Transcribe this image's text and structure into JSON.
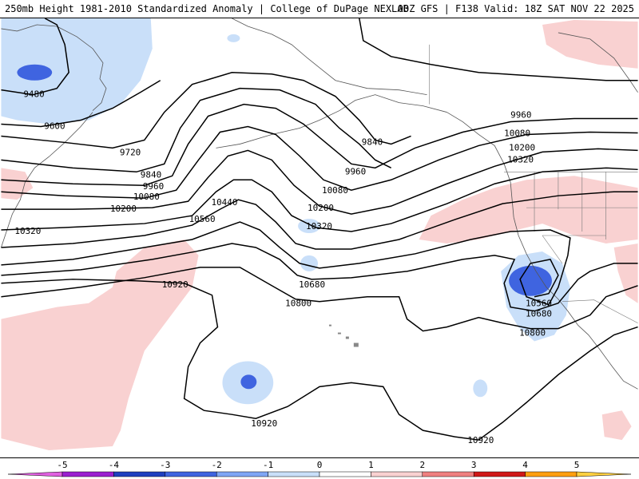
{
  "header": {
    "left_title": "250mb Height 1981-2010 Standardized Anomaly | College of DuPage NEXLAB",
    "right_title": "00Z GFS | F138 Valid: 18Z SAT NOV 22 2025"
  },
  "map": {
    "contour_labels": [
      {
        "id": "c9480",
        "text": "9480"
      },
      {
        "id": "c9600",
        "text": "9600"
      },
      {
        "id": "c9720",
        "text": "9720"
      },
      {
        "id": "c9840a",
        "text": "9840"
      },
      {
        "id": "c9840b",
        "text": "9840"
      },
      {
        "id": "c9960a",
        "text": "9960"
      },
      {
        "id": "c9960b",
        "text": "9960"
      },
      {
        "id": "c9960c",
        "text": "9960"
      },
      {
        "id": "c10080a",
        "text": "10080"
      },
      {
        "id": "c10080b",
        "text": "10080"
      },
      {
        "id": "c10080c",
        "text": "10080"
      },
      {
        "id": "c10200a",
        "text": "10200"
      },
      {
        "id": "c10200b",
        "text": "10200"
      },
      {
        "id": "c10200c",
        "text": "10200"
      },
      {
        "id": "c10320a",
        "text": "10320"
      },
      {
        "id": "c10320b",
        "text": "10320"
      },
      {
        "id": "c10320c",
        "text": "10320"
      },
      {
        "id": "c10440",
        "text": "10440"
      },
      {
        "id": "c10560a",
        "text": "10560"
      },
      {
        "id": "c10560b",
        "text": "10560"
      },
      {
        "id": "c10680a",
        "text": "10680"
      },
      {
        "id": "c10680b",
        "text": "10680"
      },
      {
        "id": "c10800a",
        "text": "10800"
      },
      {
        "id": "c10800b",
        "text": "10800"
      },
      {
        "id": "c10920a",
        "text": "10920"
      },
      {
        "id": "c10920b",
        "text": "10920"
      },
      {
        "id": "c10920c",
        "text": "10920"
      }
    ]
  },
  "colorbar": {
    "ticks": [
      "-5",
      "-4",
      "-3",
      "-2",
      "-1",
      "0",
      "1",
      "2",
      "3",
      "4",
      "5"
    ],
    "colors": [
      "#9b1fd0",
      "#1f3fbf",
      "#3f64e0",
      "#7fa6f5",
      "#c9dff9",
      "#ffffff",
      "#ffffff",
      "#f9d1d1",
      "#f08080",
      "#d01818",
      "#ff9f10"
    ],
    "end_colors": {
      "low": "#e060e0",
      "high": "#ffd040"
    }
  }
}
